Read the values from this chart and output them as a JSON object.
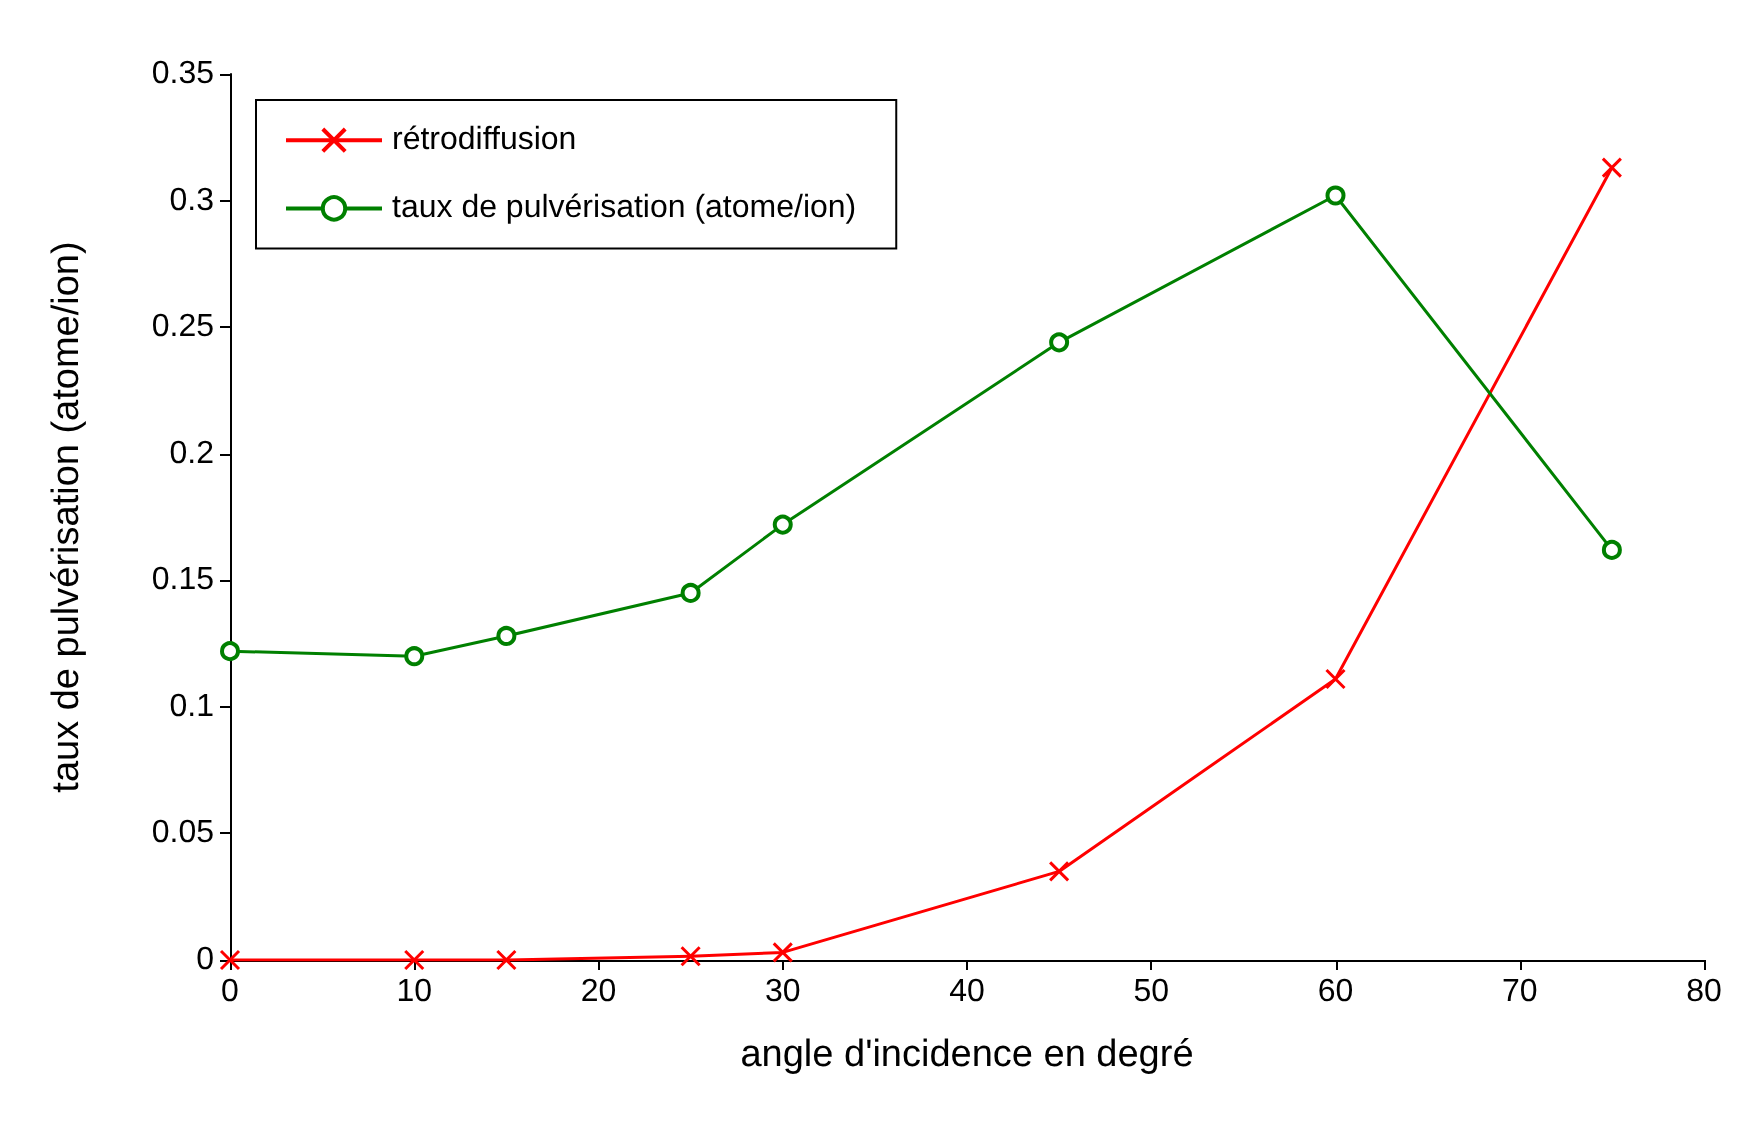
{
  "chart_data": {
    "type": "line",
    "xlabel": "angle d'incidence en degré",
    "ylabel": "taux de pulvérisation (atome/ion)",
    "x": [
      0,
      10,
      15,
      25,
      30,
      45,
      60,
      75
    ],
    "series": [
      {
        "name": "rétrodiffusion",
        "color": "#ff0000",
        "marker": "cross",
        "values": [
          0,
          0,
          0,
          0.0015,
          0.003,
          0.035,
          0.111,
          0.313
        ]
      },
      {
        "name": "taux de pulvérisation (atome/ion)",
        "color": "#008000",
        "marker": "circle",
        "values": [
          0.122,
          0.12,
          0.128,
          0.145,
          0.172,
          0.244,
          0.302,
          0.162
        ]
      }
    ],
    "xlim": [
      0,
      80
    ],
    "xticks": [
      0,
      10,
      20,
      30,
      40,
      50,
      60,
      70,
      80
    ],
    "ylim": [
      0,
      0.35
    ],
    "yticks": [
      0,
      0.05,
      0.1,
      0.15,
      0.2,
      0.25,
      0.3,
      0.35
    ],
    "grid": false,
    "legend": "top left",
    "line_style": "solid"
  }
}
